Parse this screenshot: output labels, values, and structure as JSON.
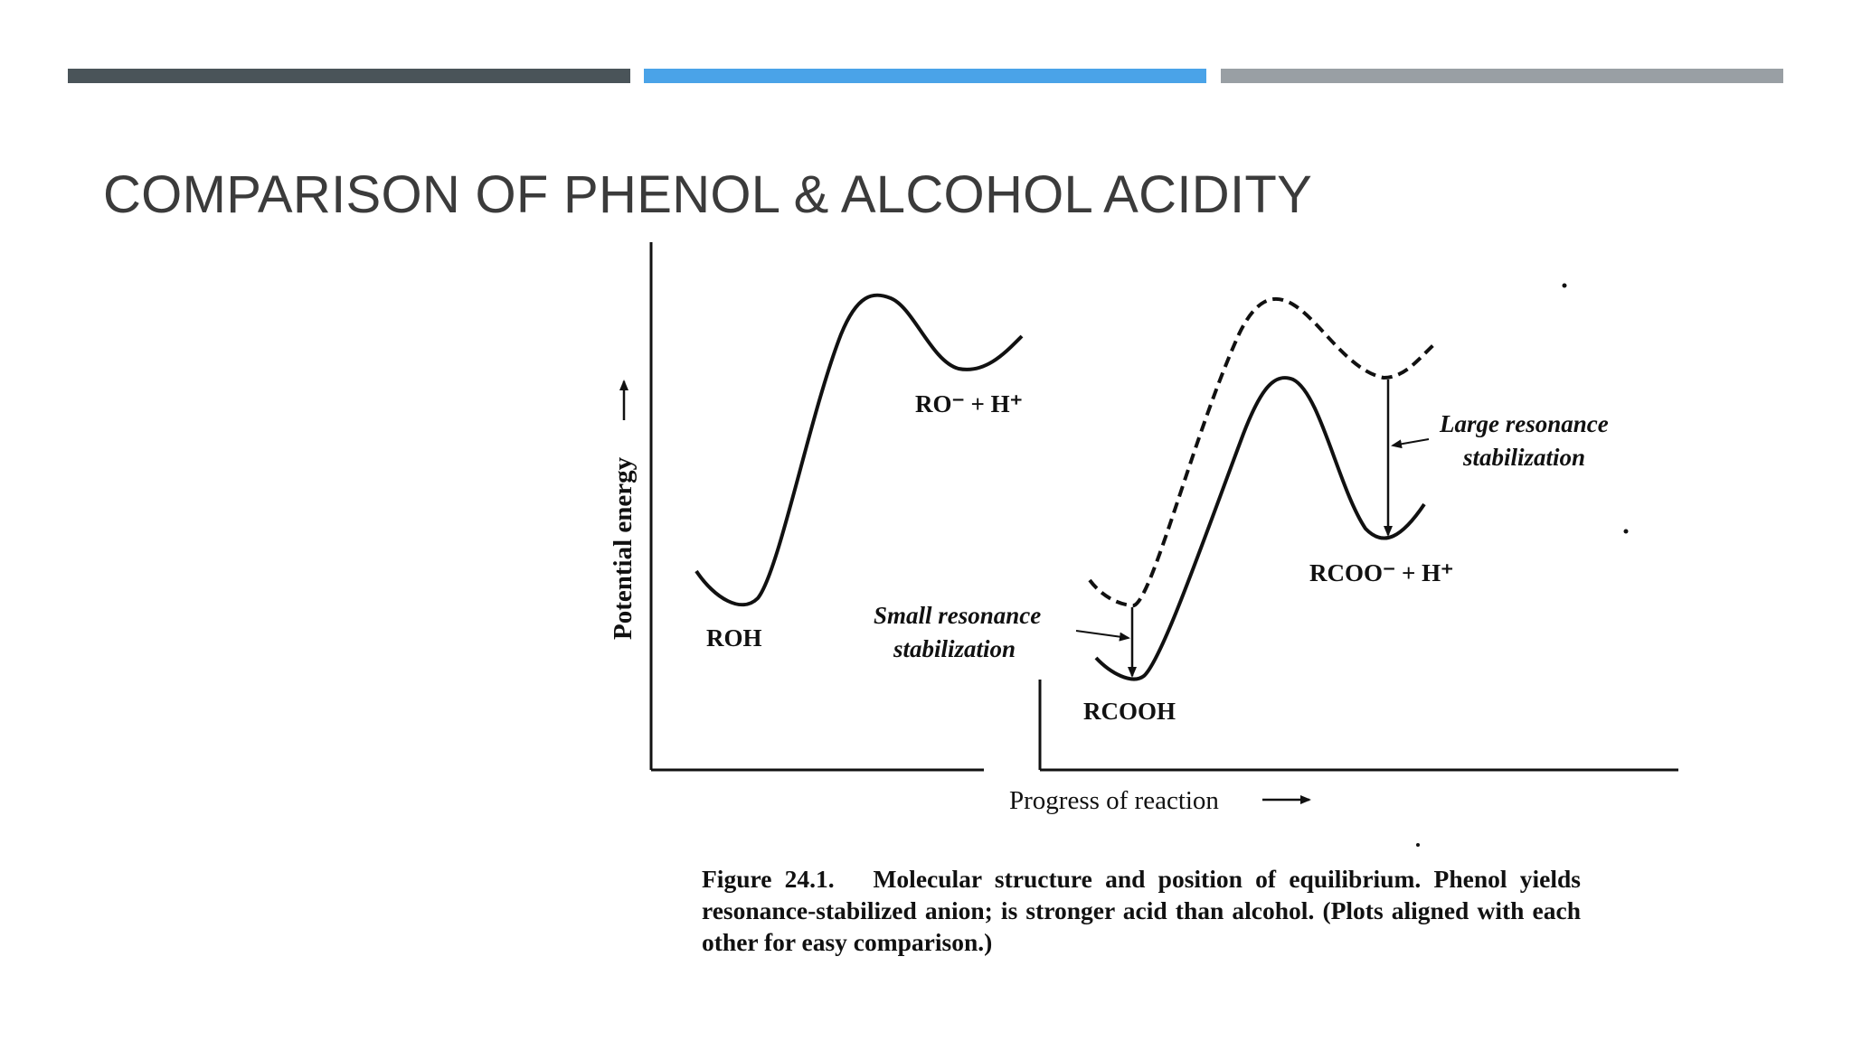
{
  "slide": {
    "title": "COMPARISON OF PHENOL & ALCOHOL ACIDITY",
    "accent_bars": [
      {
        "color": "#4a5459"
      },
      {
        "color": "#4aa3e8"
      },
      {
        "color": "#999fa4"
      }
    ]
  },
  "figure": {
    "y_axis_label": "Potential energy",
    "x_axis_label": "Progress of reaction",
    "labels": {
      "roh": "ROH",
      "ro_h": "RO⁻ + H⁺",
      "rcooh": "RCOOH",
      "rcoo_h": "RCOO⁻ + H⁺",
      "small_res_line1": "Small resonance",
      "small_res_line2": "stabilization",
      "large_res_line1": "Large resonance",
      "large_res_line2": "stabilization"
    },
    "caption": {
      "number": "Figure 24.1.",
      "text": "Molecular structure and position of equilibrium. Phenol yields resonance-stabilized anion; is stronger acid than alcohol. (Plots aligned with each other for easy comparison.)"
    }
  }
}
